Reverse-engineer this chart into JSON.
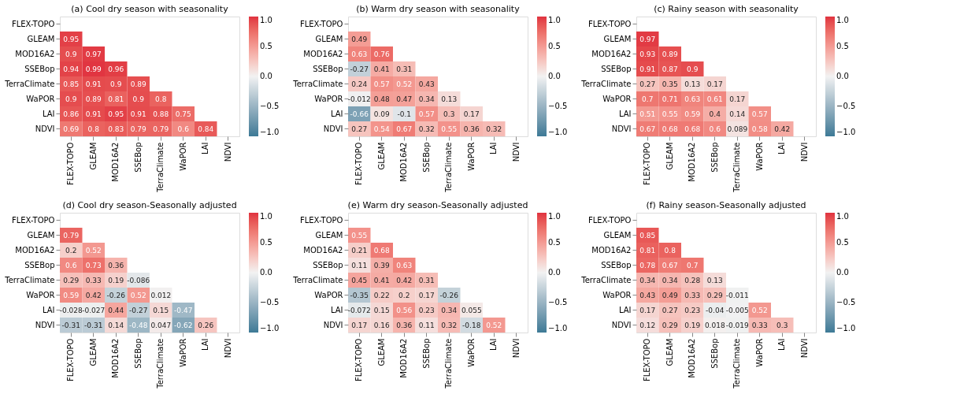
{
  "chart_data": [
    {
      "type": "heatmap",
      "title": "(a) Cool dry season with seasonality",
      "categories": [
        "FLEX-TOPO",
        "GLEAM",
        "MOD16A2",
        "SSEBop",
        "TerraClimate",
        "WaPOR",
        "LAI",
        "NDVI"
      ],
      "y_categories": [
        "FLEX-TOPO",
        "GLEAM",
        "MOD16A2",
        "SSEBop",
        "TerraClimate",
        "WaPOR",
        "LAI",
        "NDVI"
      ],
      "clim": [
        -1,
        1
      ],
      "cticks": [
        {
          "value": -1.0,
          "label": "−1.0"
        },
        {
          "value": -0.5,
          "label": "−0.5"
        },
        {
          "value": 0.0,
          "label": "0.0"
        },
        {
          "value": 0.5,
          "label": "0.5"
        },
        {
          "value": 1.0,
          "label": "1.0"
        }
      ],
      "data_labels": true,
      "cells": [
        [
          null,
          null,
          null,
          null,
          null,
          null,
          null,
          null
        ],
        [
          0.95,
          null,
          null,
          null,
          null,
          null,
          null,
          null
        ],
        [
          0.9,
          0.97,
          null,
          null,
          null,
          null,
          null,
          null
        ],
        [
          0.94,
          0.99,
          0.96,
          null,
          null,
          null,
          null,
          null
        ],
        [
          0.85,
          0.91,
          0.9,
          0.89,
          null,
          null,
          null,
          null
        ],
        [
          0.9,
          0.89,
          0.81,
          0.9,
          0.8,
          null,
          null,
          null
        ],
        [
          0.86,
          0.91,
          0.95,
          0.91,
          0.88,
          0.75,
          null,
          null
        ],
        [
          0.69,
          0.8,
          0.83,
          0.79,
          0.79,
          0.6,
          0.84,
          null
        ]
      ]
    },
    {
      "type": "heatmap",
      "title": "(b) Warm dry season with seasonality",
      "categories": [
        "FLEX-TOPO",
        "GLEAM",
        "MOD16A2",
        "SSEBop",
        "TerraClimate",
        "WaPOR",
        "LAI",
        "NDVI"
      ],
      "y_categories": [
        "FLEX-TOPO",
        "GLEAM",
        "MOD16A2",
        "SSEBop",
        "TerraClimate",
        "WaPOR",
        "LAI",
        "NDVI"
      ],
      "clim": [
        -1,
        1
      ],
      "cticks": [
        {
          "value": -1.0,
          "label": "−1.0"
        },
        {
          "value": -0.5,
          "label": "−0.5"
        },
        {
          "value": 0.0,
          "label": "0.0"
        },
        {
          "value": 0.5,
          "label": "0.5"
        },
        {
          "value": 1.0,
          "label": "1.0"
        }
      ],
      "data_labels": true,
      "cells": [
        [
          null,
          null,
          null,
          null,
          null,
          null,
          null,
          null
        ],
        [
          0.49,
          null,
          null,
          null,
          null,
          null,
          null,
          null
        ],
        [
          0.63,
          0.76,
          null,
          null,
          null,
          null,
          null,
          null
        ],
        [
          -0.27,
          0.41,
          0.31,
          null,
          null,
          null,
          null,
          null
        ],
        [
          0.24,
          0.57,
          0.52,
          0.43,
          null,
          null,
          null,
          null
        ],
        [
          -0.012,
          0.48,
          0.47,
          0.34,
          0.13,
          null,
          null,
          null
        ],
        [
          -0.66,
          0.09,
          -0.1,
          0.57,
          0.3,
          0.17,
          null,
          null
        ],
        [
          0.27,
          0.54,
          0.67,
          0.32,
          0.55,
          0.36,
          0.32,
          null
        ]
      ]
    },
    {
      "type": "heatmap",
      "title": "(c) Rainy season with seasonality",
      "categories": [
        "FLEX-TOPO",
        "GLEAM",
        "MOD16A2",
        "SSEBop",
        "TerraClimate",
        "WaPOR",
        "LAI",
        "NDVI"
      ],
      "y_categories": [
        "FLEX-TOPO",
        "GLEAM",
        "MOD16A2",
        "SSEBop",
        "TerraClimate",
        "WaPOR",
        "LAI",
        "NDVI"
      ],
      "clim": [
        -1,
        1
      ],
      "cticks": [
        {
          "value": -1.0,
          "label": "−1.0"
        },
        {
          "value": -0.5,
          "label": "−0.5"
        },
        {
          "value": 0.0,
          "label": "0.0"
        },
        {
          "value": 0.5,
          "label": "0.5"
        },
        {
          "value": 1.0,
          "label": "1.0"
        }
      ],
      "data_labels": true,
      "cells": [
        [
          null,
          null,
          null,
          null,
          null,
          null,
          null,
          null
        ],
        [
          0.97,
          null,
          null,
          null,
          null,
          null,
          null,
          null
        ],
        [
          0.93,
          0.89,
          null,
          null,
          null,
          null,
          null,
          null
        ],
        [
          0.91,
          0.87,
          0.9,
          null,
          null,
          null,
          null,
          null
        ],
        [
          0.27,
          0.35,
          0.13,
          0.17,
          null,
          null,
          null,
          null
        ],
        [
          0.7,
          0.71,
          0.63,
          0.61,
          0.17,
          null,
          null,
          null
        ],
        [
          0.51,
          0.55,
          0.59,
          0.4,
          0.14,
          0.57,
          null,
          null
        ],
        [
          0.67,
          0.68,
          0.68,
          0.6,
          0.089,
          0.58,
          0.42,
          null
        ]
      ]
    },
    {
      "type": "heatmap",
      "title": "(d) Cool dry season-Seasonally adjusted",
      "categories": [
        "FLEX-TOPO",
        "GLEAM",
        "MOD16A2",
        "SSEBop",
        "TerraClimate",
        "WaPOR",
        "LAI",
        "NDVI"
      ],
      "y_categories": [
        "FLEX-TOPO",
        "GLEAM",
        "MOD16A2",
        "SSEBop",
        "TerraClimate",
        "WaPOR",
        "LAI",
        "NDVI"
      ],
      "clim": [
        -1,
        1
      ],
      "cticks": [
        {
          "value": -1.0,
          "label": "−1.0"
        },
        {
          "value": -0.5,
          "label": "−0.5"
        },
        {
          "value": 0.0,
          "label": "0.0"
        },
        {
          "value": 0.5,
          "label": "0.5"
        },
        {
          "value": 1.0,
          "label": "1.0"
        }
      ],
      "data_labels": true,
      "cells": [
        [
          null,
          null,
          null,
          null,
          null,
          null,
          null,
          null
        ],
        [
          0.79,
          null,
          null,
          null,
          null,
          null,
          null,
          null
        ],
        [
          0.2,
          0.52,
          null,
          null,
          null,
          null,
          null,
          null
        ],
        [
          0.6,
          0.73,
          0.36,
          null,
          null,
          null,
          null,
          null
        ],
        [
          0.29,
          0.33,
          0.19,
          -0.086,
          null,
          null,
          null,
          null
        ],
        [
          0.59,
          0.42,
          -0.26,
          0.52,
          0.012,
          null,
          null,
          null
        ],
        [
          -0.028,
          -0.027,
          0.44,
          -0.27,
          0.15,
          -0.47,
          null,
          null
        ],
        [
          -0.31,
          -0.31,
          0.14,
          -0.48,
          0.047,
          -0.62,
          0.26,
          null
        ]
      ]
    },
    {
      "type": "heatmap",
      "title": "(e) Warm dry season-Seasonally adjusted",
      "categories": [
        "FLEX-TOPO",
        "GLEAM",
        "MOD16A2",
        "SSEBop",
        "TerraClimate",
        "WaPOR",
        "LAI",
        "NDVI"
      ],
      "y_categories": [
        "FLEX-TOPO",
        "GLEAM",
        "MOD16A2",
        "SSEBop",
        "TerraClimate",
        "WaPOR",
        "LAI",
        "NDVI"
      ],
      "clim": [
        -1,
        1
      ],
      "cticks": [
        {
          "value": -1.0,
          "label": "−1.0"
        },
        {
          "value": -0.5,
          "label": "−0.5"
        },
        {
          "value": 0.0,
          "label": "0.0"
        },
        {
          "value": 0.5,
          "label": "0.5"
        },
        {
          "value": 1.0,
          "label": "1.0"
        }
      ],
      "data_labels": true,
      "cells": [
        [
          null,
          null,
          null,
          null,
          null,
          null,
          null,
          null
        ],
        [
          0.55,
          null,
          null,
          null,
          null,
          null,
          null,
          null
        ],
        [
          0.21,
          0.68,
          null,
          null,
          null,
          null,
          null,
          null
        ],
        [
          0.11,
          0.39,
          0.63,
          null,
          null,
          null,
          null,
          null
        ],
        [
          0.45,
          0.41,
          0.42,
          0.31,
          null,
          null,
          null,
          null
        ],
        [
          -0.35,
          0.22,
          0.2,
          0.17,
          -0.26,
          null,
          null,
          null
        ],
        [
          -0.072,
          0.15,
          0.56,
          0.23,
          0.34,
          0.055,
          null,
          null
        ],
        [
          0.17,
          0.16,
          0.36,
          0.11,
          0.32,
          -0.18,
          0.52,
          null
        ]
      ]
    },
    {
      "type": "heatmap",
      "title": "(f) Rainy season-Seasonally adjusted",
      "categories": [
        "FLEX-TOPO",
        "GLEAM",
        "MOD16A2",
        "SSEBop",
        "TerraClimate",
        "WaPOR",
        "LAI",
        "NDVI"
      ],
      "y_categories": [
        "FLEX-TOPO",
        "GLEAM",
        "MOD16A2",
        "SSEBop",
        "TerraClimate",
        "WaPOR",
        "LAI",
        "NDVI"
      ],
      "clim": [
        -1,
        1
      ],
      "cticks": [
        {
          "value": -1.0,
          "label": "−1.0"
        },
        {
          "value": -0.5,
          "label": "−0.5"
        },
        {
          "value": 0.0,
          "label": "0.0"
        },
        {
          "value": 0.5,
          "label": "0.5"
        },
        {
          "value": 1.0,
          "label": "1.0"
        }
      ],
      "data_labels": true,
      "cells": [
        [
          null,
          null,
          null,
          null,
          null,
          null,
          null,
          null
        ],
        [
          0.85,
          null,
          null,
          null,
          null,
          null,
          null,
          null
        ],
        [
          0.81,
          0.8,
          null,
          null,
          null,
          null,
          null,
          null
        ],
        [
          0.78,
          0.67,
          0.7,
          null,
          null,
          null,
          null,
          null
        ],
        [
          0.34,
          0.34,
          0.28,
          0.13,
          null,
          null,
          null,
          null
        ],
        [
          0.43,
          0.49,
          0.33,
          0.29,
          -0.011,
          null,
          null,
          null
        ],
        [
          0.17,
          0.27,
          0.23,
          -0.04,
          -0.005,
          0.52,
          null,
          null
        ],
        [
          0.12,
          0.29,
          0.19,
          0.018,
          -0.019,
          0.33,
          0.3,
          null
        ]
      ]
    }
  ]
}
